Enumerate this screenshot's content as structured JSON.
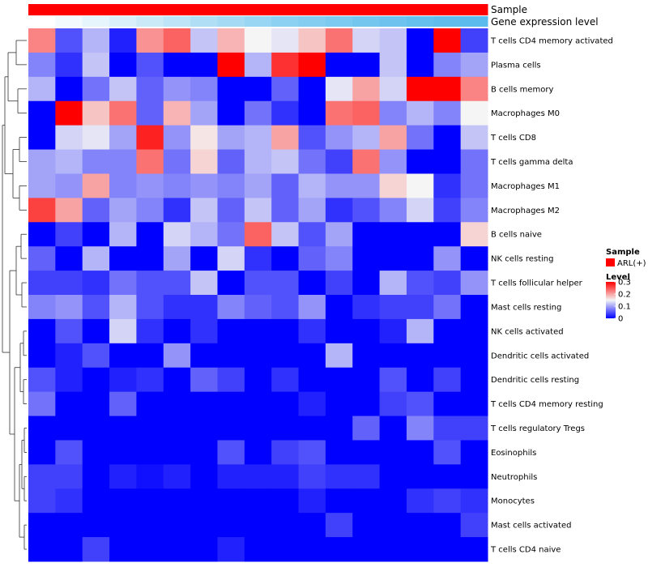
{
  "chart_data": {
    "type": "heatmap",
    "annotations": {
      "sample_label": "Sample",
      "expression_label": "Gene expression level"
    },
    "rows": [
      "T cells CD4 memory activated",
      "Plasma cells",
      "B cells memory",
      "Macrophages M0",
      "T cells CD8",
      "T cells gamma delta",
      "Macrophages M1",
      "Macrophages M2",
      "B cells naive",
      "NK cells resting",
      "T cells follicular helper",
      "Mast cells resting",
      "NK cells activated",
      "Dendritic cells activated",
      "Dendritic cells resting",
      "T cells CD4 memory resting",
      "T cells regulatory  Tregs",
      "Eosinophils",
      "Neutrophils",
      "Monocytes",
      "Mast cells activated",
      "T cells CD4 naive"
    ],
    "values": [
      [
        0.22,
        0.05,
        0.11,
        0.02,
        0.21,
        0.24,
        0.12,
        0.19,
        0.15,
        0.14,
        0.18,
        0.23,
        0.13,
        0.12,
        0.0,
        0.3,
        0.04
      ],
      [
        0.08,
        0.03,
        0.12,
        0.0,
        0.05,
        0.0,
        0.0,
        0.3,
        0.11,
        0.27,
        0.3,
        0.0,
        0.0,
        0.12,
        0.0,
        0.08,
        0.1
      ],
      [
        0.11,
        0.0,
        0.07,
        0.12,
        0.06,
        0.09,
        0.08,
        0.0,
        0.0,
        0.06,
        0.0,
        0.14,
        0.2,
        0.13,
        0.3,
        0.3,
        0.22
      ],
      [
        0.0,
        0.3,
        0.18,
        0.23,
        0.06,
        0.19,
        0.1,
        0.0,
        0.07,
        0.03,
        0.0,
        0.23,
        0.24,
        0.08,
        0.11,
        0.08,
        0.15
      ],
      [
        0.0,
        0.13,
        0.14,
        0.1,
        0.28,
        0.09,
        0.16,
        0.1,
        0.11,
        0.2,
        0.05,
        0.09,
        0.11,
        0.2,
        0.07,
        0.0,
        0.12
      ],
      [
        0.1,
        0.11,
        0.08,
        0.08,
        0.23,
        0.07,
        0.17,
        0.06,
        0.11,
        0.12,
        0.07,
        0.04,
        0.23,
        0.09,
        0.0,
        0.0,
        0.07
      ],
      [
        0.1,
        0.09,
        0.2,
        0.08,
        0.09,
        0.08,
        0.09,
        0.08,
        0.1,
        0.06,
        0.11,
        0.09,
        0.09,
        0.17,
        0.15,
        0.03,
        0.07
      ],
      [
        0.26,
        0.2,
        0.06,
        0.1,
        0.08,
        0.03,
        0.12,
        0.06,
        0.12,
        0.06,
        0.1,
        0.03,
        0.05,
        0.08,
        0.13,
        0.04,
        0.08
      ],
      [
        0.0,
        0.04,
        0.0,
        0.11,
        0.0,
        0.13,
        0.11,
        0.07,
        0.24,
        0.12,
        0.05,
        0.1,
        0.0,
        0.0,
        0.0,
        0.0,
        0.17
      ],
      [
        0.06,
        0.0,
        0.11,
        0.0,
        0.0,
        0.1,
        0.0,
        0.13,
        0.03,
        0.0,
        0.06,
        0.08,
        0.0,
        0.0,
        0.0,
        0.09,
        0.0
      ],
      [
        0.04,
        0.04,
        0.03,
        0.07,
        0.05,
        0.05,
        0.12,
        0.0,
        0.05,
        0.05,
        0.0,
        0.04,
        0.0,
        0.11,
        0.05,
        0.04,
        0.09
      ],
      [
        0.08,
        0.09,
        0.05,
        0.11,
        0.05,
        0.03,
        0.03,
        0.08,
        0.06,
        0.05,
        0.09,
        0.0,
        0.03,
        0.04,
        0.04,
        0.07,
        0.0
      ],
      [
        0.0,
        0.05,
        0.0,
        0.13,
        0.03,
        0.0,
        0.03,
        0.0,
        0.0,
        0.0,
        0.03,
        0.0,
        0.0,
        0.02,
        0.11,
        0.0,
        0.0
      ],
      [
        0.0,
        0.02,
        0.05,
        0.0,
        0.0,
        0.09,
        0.0,
        0.0,
        0.0,
        0.0,
        0.0,
        0.11,
        0.0,
        0.0,
        0.0,
        0.0,
        0.0
      ],
      [
        0.05,
        0.02,
        0.0,
        0.02,
        0.03,
        0.0,
        0.06,
        0.04,
        0.0,
        0.03,
        0.0,
        0.0,
        0.0,
        0.05,
        0.0,
        0.04,
        0.0
      ],
      [
        0.07,
        0.0,
        0.0,
        0.06,
        0.0,
        0.0,
        0.0,
        0.0,
        0.0,
        0.0,
        0.02,
        0.0,
        0.0,
        0.04,
        0.05,
        0.0,
        0.0
      ],
      [
        0.0,
        0.0,
        0.0,
        0.0,
        0.0,
        0.0,
        0.0,
        0.0,
        0.0,
        0.0,
        0.0,
        0.0,
        0.06,
        0.0,
        0.08,
        0.04,
        0.04
      ],
      [
        0.0,
        0.05,
        0.0,
        0.0,
        0.0,
        0.0,
        0.0,
        0.05,
        0.0,
        0.04,
        0.05,
        0.0,
        0.0,
        0.0,
        0.0,
        0.05,
        0.0
      ],
      [
        0.04,
        0.04,
        0.0,
        0.02,
        0.01,
        0.02,
        0.0,
        0.02,
        0.02,
        0.02,
        0.04,
        0.03,
        0.03,
        0.0,
        0.0,
        0.0,
        0.0
      ],
      [
        0.04,
        0.03,
        0.0,
        0.0,
        0.0,
        0.0,
        0.0,
        0.0,
        0.0,
        0.0,
        0.02,
        0.0,
        0.0,
        0.0,
        0.03,
        0.04,
        0.03
      ],
      [
        0.0,
        0.0,
        0.0,
        0.0,
        0.0,
        0.0,
        0.0,
        0.0,
        0.0,
        0.0,
        0.0,
        0.04,
        0.0,
        0.0,
        0.0,
        0.0,
        0.04
      ],
      [
        0.0,
        0.0,
        0.04,
        0.0,
        0.0,
        0.0,
        0.0,
        0.02,
        0.0,
        0.0,
        0.0,
        0.0,
        0.0,
        0.0,
        0.0,
        0.0,
        0.0
      ]
    ],
    "color_scale": {
      "min": 0,
      "max": 0.3,
      "low_color": "#0000ff",
      "mid_color": "#f5f5f5",
      "high_color": "#ff0000"
    },
    "sample_color": "#ff0000",
    "expression_colors": [
      "#ffffff",
      "#f2fafd",
      "#e6f5fc",
      "#d9f0fa",
      "#cbeaf8",
      "#bde5f7",
      "#b0dff5",
      "#a4daf4",
      "#98d6f3",
      "#8dd1f2",
      "#84cdf1",
      "#7ccaf0",
      "#74c6ef",
      "#6dc3ee",
      "#66c0ed",
      "#60bdec",
      "#5bbbec"
    ],
    "legend": {
      "sample_title": "Sample",
      "sample_item": "ARL(+)",
      "level_title": "Level",
      "level_ticks": [
        "0.3",
        "0.2",
        "0.1",
        "0"
      ]
    }
  }
}
